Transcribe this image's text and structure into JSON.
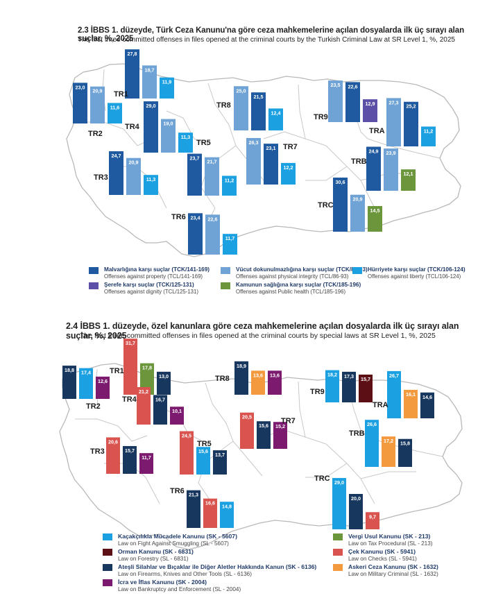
{
  "colors": {
    "map_fill": "#ffffff",
    "map_stroke": "#b8b8b8",
    "value_text": "#ffffff",
    "region_label": "#1a1a1a"
  },
  "chart_data": [
    {
      "type": "bar",
      "title": "2.3 İBBS 1. düzeyde, Türk Ceza Kanunu'na göre ceza mahkemelerine açılan dosyalarda ilk üç sırayı alan suçlar, %, 2025",
      "subtitle": "The first three committed offenses in files opened at the criminal courts by the Turkish Criminal Law at SR Level 1, %, 2025",
      "ylim": [
        0,
        32
      ],
      "categories_legend": [
        {
          "key": "property",
          "label": "Malvarlığına karşı suçlar (TCK/141-169)",
          "sub": "Offenses against property (TCL/141-169)",
          "color": "#1f5aa0"
        },
        {
          "key": "physical",
          "label": "Vücut dokunulmazlığına karşı suçlar (TCK/86-93)",
          "sub": "Offenses against physical integrity (TCL/86-93)",
          "color": "#6fa3d6"
        },
        {
          "key": "liberty",
          "label": "Hürriyete karşı suçlar (TCK/106-124)",
          "sub": "Offenses against liberty (TCL/106-124)",
          "color": "#1ba1e2"
        },
        {
          "key": "dignity",
          "label": "Şerefe karşı suçlar (TCK/125-131)",
          "sub": "Offenses against dignity (TCL/125-131)",
          "color": "#5b4fa7"
        },
        {
          "key": "health",
          "label": "Kamunun sağlığına karşı suçlar (TCK/185-196)",
          "sub": "Offenses against Public health (TCL/185-196)",
          "color": "#6b963c"
        }
      ],
      "regions": [
        {
          "name": "TR1",
          "bars": [
            {
              "key": "property",
              "value": 27.8
            },
            {
              "key": "physical",
              "value": 18.7
            },
            {
              "key": "liberty",
              "value": 11.9
            }
          ]
        },
        {
          "name": "TR2",
          "bars": [
            {
              "key": "property",
              "value": 23.0
            },
            {
              "key": "physical",
              "value": 20.9
            },
            {
              "key": "liberty",
              "value": 11.6
            }
          ]
        },
        {
          "name": "TR3",
          "bars": [
            {
              "key": "property",
              "value": 24.7
            },
            {
              "key": "physical",
              "value": 20.9
            },
            {
              "key": "liberty",
              "value": 11.3
            }
          ]
        },
        {
          "name": "TR4",
          "bars": [
            {
              "key": "property",
              "value": 29.0
            },
            {
              "key": "physical",
              "value": 19.0
            },
            {
              "key": "liberty",
              "value": 11.3
            }
          ]
        },
        {
          "name": "TR5",
          "bars": [
            {
              "key": "property",
              "value": 23.7
            },
            {
              "key": "physical",
              "value": 21.7
            },
            {
              "key": "liberty",
              "value": 11.2
            }
          ]
        },
        {
          "name": "TR6",
          "bars": [
            {
              "key": "property",
              "value": 23.4
            },
            {
              "key": "physical",
              "value": 22.6
            },
            {
              "key": "liberty",
              "value": 11.7
            }
          ]
        },
        {
          "name": "TR7",
          "bars": [
            {
              "key": "physical",
              "value": 26.3
            },
            {
              "key": "property",
              "value": 23.1
            },
            {
              "key": "liberty",
              "value": 12.2
            }
          ]
        },
        {
          "name": "TR8",
          "bars": [
            {
              "key": "physical",
              "value": 25.0
            },
            {
              "key": "property",
              "value": 21.5
            },
            {
              "key": "liberty",
              "value": 12.4
            }
          ]
        },
        {
          "name": "TR9",
          "bars": [
            {
              "key": "physical",
              "value": 23.5
            },
            {
              "key": "property",
              "value": 22.6
            },
            {
              "key": "dignity",
              "value": 12.9
            }
          ]
        },
        {
          "name": "TRA",
          "bars": [
            {
              "key": "physical",
              "value": 27.3
            },
            {
              "key": "property",
              "value": 25.2
            },
            {
              "key": "liberty",
              "value": 11.2
            }
          ]
        },
        {
          "name": "TRB",
          "bars": [
            {
              "key": "property",
              "value": 24.9
            },
            {
              "key": "physical",
              "value": 23.9
            },
            {
              "key": "health",
              "value": 12.1
            }
          ]
        },
        {
          "name": "TRC",
          "bars": [
            {
              "key": "property",
              "value": 30.6
            },
            {
              "key": "physical",
              "value": 20.9
            },
            {
              "key": "health",
              "value": 14.5
            }
          ]
        }
      ]
    },
    {
      "type": "bar",
      "title": "2.4 İBBS 1. düzeyde, özel kanunlara göre ceza mahkemelerine açılan dosyalarda ilk üç sırayı alan suçlar, %, 2025",
      "subtitle": "The first three committed offenses in files opened at the criminal courts by special laws at SR Level 1, %, 2025",
      "ylim": [
        0,
        32
      ],
      "categories_legend": [
        {
          "key": "smuggling",
          "label": "Kaçakçılıkla Mücadele Kanunu (SK - 5607)",
          "sub": "Law on Fight Against Smuggling (SL - 5607)",
          "color": "#1ba1e2"
        },
        {
          "key": "forestry",
          "label": "Orman Kanunu (SK - 6831)",
          "sub": "Law on Forestry (SL - 6831)",
          "color": "#5c0f14"
        },
        {
          "key": "firearms",
          "label": "Ateşli Silahlar ve Bıçaklar ile Diğer Aletler Hakkında Kanun (SK - 6136)",
          "sub": "Law on Firearms, Knives and Other Tools (SL - 6136)",
          "color": "#17375e"
        },
        {
          "key": "bankruptcy",
          "label": "İcra ve İflas Kanunu (SK - 2004)",
          "sub": "Law on Bankruptcy and Enforcement (SL - 2004)",
          "color": "#7b1a6e"
        },
        {
          "key": "tax",
          "label": "Vergi Usul Kanunu (SK - 213)",
          "sub": "Law on Tax Procedural (SL - 213)",
          "color": "#6b963c"
        },
        {
          "key": "checks",
          "label": "Çek Kanunu (SK - 5941)",
          "sub": "Law on Checks (SL - 5941)",
          "color": "#d9534f"
        },
        {
          "key": "military",
          "label": "Askeri Ceza Kanunu (SK - 1632)",
          "sub": "Law on Military Criminal (SL - 1632)",
          "color": "#f39a3e"
        }
      ],
      "regions": [
        {
          "name": "TR1",
          "bars": [
            {
              "key": "checks",
              "value": 31.7
            },
            {
              "key": "tax",
              "value": 17.8
            },
            {
              "key": "firearms",
              "value": 13.0
            }
          ]
        },
        {
          "name": "TR2",
          "bars": [
            {
              "key": "firearms",
              "value": 18.8
            },
            {
              "key": "smuggling",
              "value": 17.4
            },
            {
              "key": "bankruptcy",
              "value": 12.6
            }
          ]
        },
        {
          "name": "TR3",
          "bars": [
            {
              "key": "checks",
              "value": 20.6
            },
            {
              "key": "firearms",
              "value": 15.7
            },
            {
              "key": "bankruptcy",
              "value": 11.7
            }
          ]
        },
        {
          "name": "TR4",
          "bars": [
            {
              "key": "checks",
              "value": 21.2
            },
            {
              "key": "firearms",
              "value": 16.7
            },
            {
              "key": "bankruptcy",
              "value": 10.1
            }
          ]
        },
        {
          "name": "TR5",
          "bars": [
            {
              "key": "checks",
              "value": 24.5
            },
            {
              "key": "smuggling",
              "value": 15.6
            },
            {
              "key": "firearms",
              "value": 13.7
            }
          ]
        },
        {
          "name": "TR6",
          "bars": [
            {
              "key": "firearms",
              "value": 21.3
            },
            {
              "key": "checks",
              "value": 16.6
            },
            {
              "key": "smuggling",
              "value": 14.8
            }
          ]
        },
        {
          "name": "TR7",
          "bars": [
            {
              "key": "checks",
              "value": 20.5
            },
            {
              "key": "firearms",
              "value": 15.6
            },
            {
              "key": "bankruptcy",
              "value": 15.2
            }
          ]
        },
        {
          "name": "TR8",
          "bars": [
            {
              "key": "firearms",
              "value": 18.9
            },
            {
              "key": "military",
              "value": 13.6
            },
            {
              "key": "bankruptcy",
              "value": 13.6
            }
          ]
        },
        {
          "name": "TR9",
          "bars": [
            {
              "key": "smuggling",
              "value": 18.2
            },
            {
              "key": "firearms",
              "value": 17.3
            },
            {
              "key": "forestry",
              "value": 15.7
            }
          ]
        },
        {
          "name": "TRA",
          "bars": [
            {
              "key": "smuggling",
              "value": 26.7
            },
            {
              "key": "military",
              "value": 16.1
            },
            {
              "key": "firearms",
              "value": 14.6
            }
          ]
        },
        {
          "name": "TRB",
          "bars": [
            {
              "key": "smuggling",
              "value": 26.6
            },
            {
              "key": "military",
              "value": 17.2
            },
            {
              "key": "firearms",
              "value": 15.8
            }
          ]
        },
        {
          "name": "TRC",
          "bars": [
            {
              "key": "smuggling",
              "value": 29.0
            },
            {
              "key": "firearms",
              "value": 20.0
            },
            {
              "key": "checks",
              "value": 9.7
            }
          ]
        }
      ]
    }
  ]
}
